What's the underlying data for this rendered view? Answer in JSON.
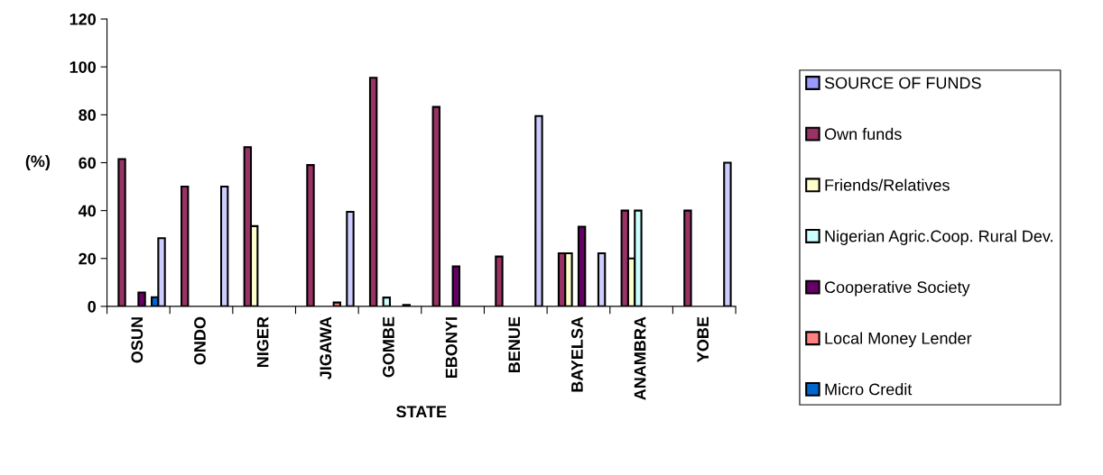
{
  "chart_data": {
    "type": "bar",
    "xlabel": "STATE",
    "ylabel": "(%)",
    "categories": [
      "OSUN",
      "ONDO",
      "NIGER",
      "JIGAWA",
      "GOMBE",
      "EBONYI",
      "BENUE",
      "BAYELSA",
      "ANAMBRA",
      "YOBE"
    ],
    "series": [
      {
        "name": "SOURCE OF FUNDS",
        "color": "#9999ff",
        "values": [
          null,
          null,
          null,
          null,
          null,
          null,
          null,
          null,
          null,
          null
        ]
      },
      {
        "name": "Own funds",
        "color": "#993366",
        "values": [
          61.5,
          50,
          66.5,
          59,
          95.5,
          83.3,
          20.8,
          22.2,
          40,
          40
        ]
      },
      {
        "name": "Friends/Relatives",
        "color": "#ffffcc",
        "values": [
          null,
          null,
          33.5,
          null,
          null,
          null,
          null,
          22.2,
          20,
          null
        ]
      },
      {
        "name": "Nigerian Agric.Coop. Rural Dev.",
        "color": "#ccffff",
        "values": [
          null,
          null,
          null,
          null,
          3.7,
          null,
          null,
          null,
          40,
          null
        ]
      },
      {
        "name": "Cooperative Society",
        "color": "#660066",
        "values": [
          5.8,
          null,
          null,
          null,
          null,
          16.7,
          null,
          33.3,
          null,
          null
        ]
      },
      {
        "name": "Local Money Lender",
        "color": "#ff8080",
        "values": [
          null,
          null,
          null,
          1.6,
          null,
          null,
          null,
          null,
          null,
          null
        ]
      },
      {
        "name": "Micro Credit",
        "color": "#0066cc",
        "values": [
          3.8,
          null,
          null,
          null,
          0.6,
          null,
          null,
          null,
          null,
          null
        ]
      },
      {
        "color": "#ccccff",
        "values": [
          28.5,
          50,
          null,
          39.5,
          null,
          null,
          79.5,
          22.2,
          null,
          60
        ]
      }
    ],
    "ylim": [
      0,
      120
    ],
    "yticks": [
      0,
      20,
      40,
      60,
      80,
      100,
      120
    ],
    "grid": false,
    "legend": "right"
  }
}
